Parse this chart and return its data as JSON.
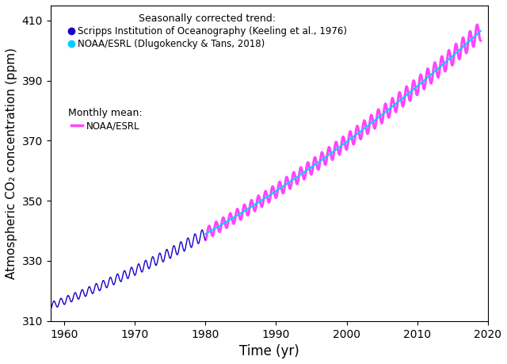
{
  "title": "",
  "xlabel": "Time (yr)",
  "ylabel": "Atmospheric CO₂ concentration (ppm)",
  "xlim": [
    1958,
    2019.5
  ],
  "ylim": [
    310,
    415
  ],
  "xticks": [
    1960,
    1970,
    1980,
    1990,
    2000,
    2010,
    2020
  ],
  "yticks": [
    310,
    330,
    350,
    370,
    390,
    410
  ],
  "legend_title_trend": "Seasonally corrected trend:",
  "legend_title_monthly": "Monthly mean:",
  "legend_scripps_label": "Scripps Institution of Oceanography (Keeling et al., 1976)",
  "legend_noaa_trend_label": "NOAA/ESRL (Dlugokencky & Tans, 2018)",
  "legend_noaa_monthly_label": "NOAA/ESRL",
  "scripps_color": "#1800c8",
  "noaa_trend_color": "#00cfff",
  "noaa_monthly_color": "#FF44FF",
  "background_color": "#ffffff",
  "figsize": [
    6.4,
    4.59
  ],
  "dpi": 100
}
